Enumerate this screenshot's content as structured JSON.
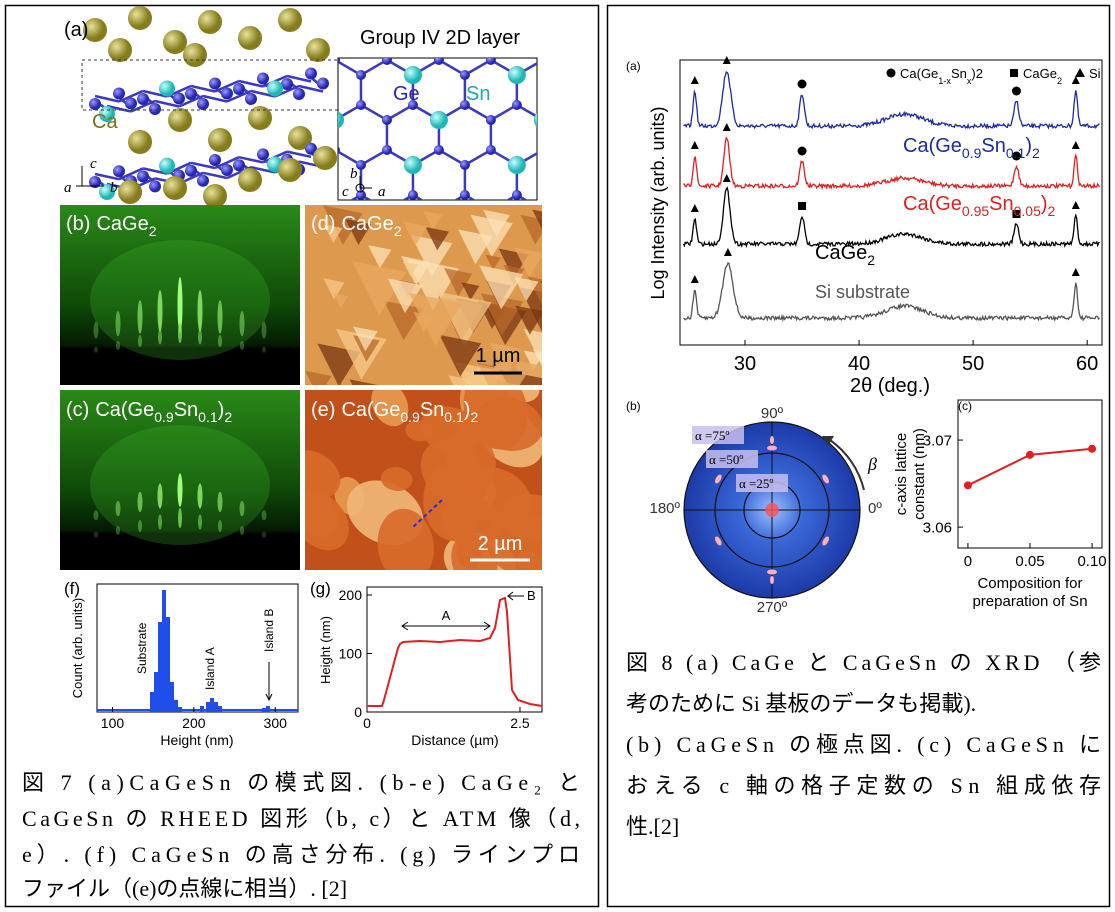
{
  "figure7": {
    "a": {
      "label": "(a)",
      "inset_title": "Group IV 2D layer",
      "ge": "Ge",
      "sn": "Sn",
      "ca": "Ca",
      "axis_a": "a",
      "axis_b": "b",
      "axis_c": "c",
      "inset_a": "a",
      "inset_b": "b",
      "inset_c": "c"
    },
    "b": {
      "label": "(b)",
      "formula": [
        "CaGe",
        "2"
      ]
    },
    "c": {
      "label": "(c)",
      "formula": [
        "Ca(Ge",
        "0.9",
        "Sn",
        "0.1",
        ")",
        "2"
      ]
    },
    "d": {
      "label": "(d)",
      "formula": [
        "CaGe",
        "2"
      ],
      "scale": "1 µm"
    },
    "e": {
      "label": "(e)",
      "formula": [
        "Ca(Ge",
        "0.9",
        "Sn",
        "0.1",
        ")",
        "2"
      ],
      "scale": "2 µm"
    },
    "f": {
      "label": "(f)",
      "y_label": "Count (arb. units)",
      "x_label": "Height (nm)",
      "xlim": [
        81,
        328
      ],
      "xticks": [
        100,
        200,
        300
      ],
      "annotations": [
        "Substrate",
        "Island A",
        "Island B"
      ]
    },
    "g": {
      "label": "(g)",
      "y_label": "Height (nm)",
      "x_label": "Distance (µm)",
      "xlim": [
        0,
        2.86
      ],
      "xticks": [
        0,
        2.5
      ],
      "ylim": [
        0,
        213.7
      ],
      "yticks": [
        0,
        100,
        200
      ],
      "annotations": [
        "A",
        "B"
      ]
    },
    "caption": [
      "図 7 (a)CaGeSn の模式図. (b-e) CaGe₂ と",
      "CaGeSn の RHEED 図形（b, c）と ATM 像（d,",
      "e）. (f) CaGeSn の高さ分布.  (g) ラインプロ",
      "ファイル（(e)の点線に相当）. [2]"
    ]
  },
  "figure8": {
    "a": {
      "label": "(a)",
      "legend": [
        [
          "Ca(Ge",
          "1-x",
          "Sn",
          "x",
          ")2"
        ],
        [
          "CaGe",
          "2"
        ],
        [
          "Si"
        ]
      ],
      "curves": [
        [
          "Ca(Ge",
          "0.9",
          "Sn",
          "0.1",
          ")",
          "2"
        ],
        [
          "Ca(Ge",
          "0.95",
          "Sn",
          "0.05",
          ")",
          "2"
        ],
        [
          "CaGe",
          "2"
        ],
        [
          "Si substrate"
        ]
      ],
      "y_label": "Log Intensity (arb. units)",
      "x_label": "2θ (deg.)",
      "xlim": [
        24.3,
        61.3
      ],
      "xticks": [
        30,
        40,
        50,
        60
      ]
    },
    "b": {
      "label": "(b)",
      "angles": [
        "90º",
        "180º",
        "0º",
        "270º"
      ],
      "alphas": [
        "α =75º",
        "α =50º",
        "α =25º"
      ],
      "beta": "β"
    },
    "c": {
      "label": "(c)",
      "y_label": [
        "c-axis lattice",
        "constant (nm)"
      ],
      "x_label": [
        "Composition for",
        "preparation of Sn"
      ],
      "xlim": [
        -0.008,
        0.108
      ],
      "ylim": [
        3.0576,
        3.0746
      ],
      "xticks": [
        0,
        0.05,
        {
          "value": 0.1,
          "label": "0.10"
        }
      ],
      "yticks": [
        3.06,
        3.07
      ],
      "x": [
        0,
        0.05,
        0.1
      ],
      "values": [
        3.0648,
        3.0683,
        3.069
      ]
    },
    "caption": [
      "図 8 (a) CaGe と CaGeSn の XRD （参",
      "考のために Si 基板のデータも掲載).",
      "(b) CaGeSn の極点図. (c) CaGeSn に",
      "おえる c 軸の格子定数の Sn 組成依存",
      "性.[2]"
    ]
  }
}
